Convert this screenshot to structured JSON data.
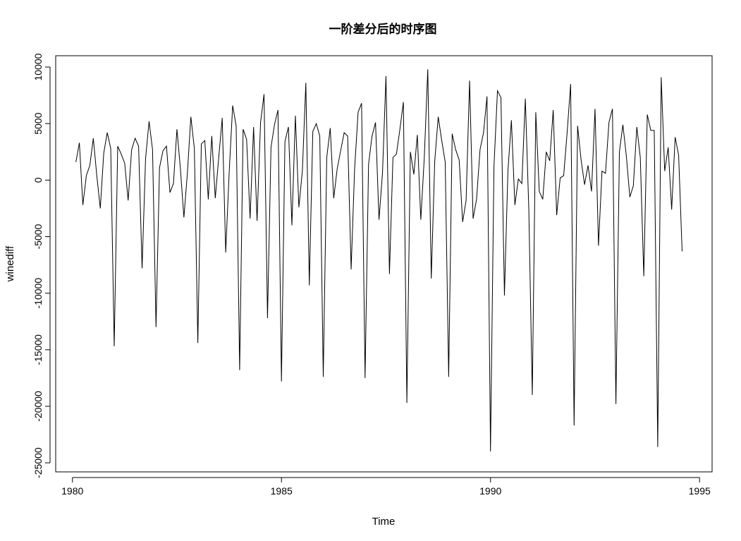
{
  "chart_data": {
    "type": "line",
    "title": "一阶差分后的时序图",
    "xlabel": "Time",
    "ylabel": "winediff",
    "xlim": [
      1979.6,
      1995.3
    ],
    "ylim": [
      -25800,
      11000
    ],
    "grid": false,
    "x_ticks": [
      1980,
      1985,
      1990,
      1995
    ],
    "x_tick_labels": [
      "1980",
      "1985",
      "1990",
      "1995"
    ],
    "y_ticks": [
      10000,
      5000,
      0,
      -5000,
      -10000,
      -15000,
      -20000,
      -25000
    ],
    "y_tick_labels": [
      "10000",
      "5000",
      "0",
      "-5000",
      "-10000",
      "-15000",
      "-20000",
      "-25000"
    ],
    "line_color": "#000000",
    "series": [
      {
        "x_start": 1980.083,
        "x_step": 0.0833333,
        "values": [
          1600,
          3300,
          -2200,
          400,
          1300,
          3700,
          400,
          -2500,
          2400,
          4200,
          2800,
          -14700,
          3000,
          2300,
          1500,
          -1800,
          2700,
          3700,
          3000,
          -7800,
          1900,
          5200,
          2700,
          -13000,
          1100,
          2600,
          3000,
          -1100,
          -300,
          4500,
          1000,
          -3300,
          600,
          5600,
          2800,
          -14400,
          3200,
          3500,
          -1700,
          3900,
          -1600,
          2000,
          5500,
          -6400,
          700,
          6600,
          4800,
          -16800,
          4500,
          3600,
          -3400,
          4700,
          -3600,
          5100,
          7600,
          -12200,
          2900,
          4900,
          6200,
          -17800,
          3400,
          4700,
          -4000,
          5700,
          -2400,
          800,
          8600,
          -9300,
          4300,
          5000,
          3900,
          -17400,
          2000,
          4600,
          -1600,
          1000,
          2600,
          4200,
          3900,
          -7900,
          1000,
          6000,
          6800,
          -17500,
          1400,
          3900,
          5100,
          -3500,
          600,
          9200,
          -8300,
          2000,
          2300,
          4500,
          6900,
          -19700,
          2500,
          500,
          4000,
          -3500,
          2000,
          9800,
          -8700,
          1700,
          5600,
          3500,
          1600,
          -17400,
          4100,
          2700,
          1800,
          -3700,
          -1800,
          8800,
          -3400,
          -1700,
          2700,
          4200,
          7400,
          -24000,
          1200,
          7900,
          7300,
          -10200,
          800,
          5300,
          -2200,
          100,
          -300,
          7200,
          -2600,
          -19000,
          6000,
          -1000,
          -1700,
          2500,
          1700,
          6200,
          -3100,
          200,
          400,
          4200,
          8500,
          -21700,
          4800,
          1800,
          -400,
          1300,
          -1000,
          6300,
          -5800,
          800,
          600,
          5100,
          6300,
          -19800,
          2500,
          4900,
          2100,
          -1500,
          -500,
          4700,
          2000,
          -8500,
          5800,
          4400,
          4400,
          -23600,
          9100,
          800,
          2900,
          -2600,
          3800,
          2200,
          -6300
        ]
      }
    ]
  }
}
